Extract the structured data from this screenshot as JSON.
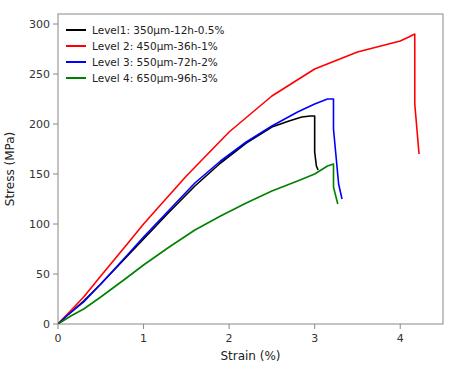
{
  "chart_data": {
    "type": "line",
    "xlabel": "Strain (%)",
    "ylabel": "Stress (MPa)",
    "xlim": [
      0,
      4.5
    ],
    "ylim": [
      0,
      310
    ],
    "xticks": [
      0,
      1,
      2,
      3,
      4
    ],
    "yticks": [
      0,
      50,
      100,
      150,
      200,
      250,
      300
    ],
    "legend": "upper left",
    "series": [
      {
        "name": "Level1: 350μm-12h-0.5%",
        "color": "black",
        "x": [
          0,
          0.1,
          0.3,
          0.5,
          0.8,
          1.0,
          1.3,
          1.6,
          1.9,
          2.2,
          2.5,
          2.7,
          2.85,
          2.95,
          3.0,
          3.0,
          3.02,
          3.04
        ],
        "values": [
          0,
          8,
          23,
          40,
          67,
          85,
          112,
          138,
          161,
          181,
          197,
          203,
          207,
          208,
          208,
          172,
          158,
          154
        ]
      },
      {
        "name": "Level 2: 450μm-36h-1%",
        "color": "red",
        "x": [
          0,
          0.1,
          0.3,
          0.5,
          0.8,
          1.0,
          1.5,
          2.0,
          2.5,
          3.0,
          3.5,
          4.0,
          4.1,
          4.17,
          4.17,
          4.22
        ],
        "values": [
          0,
          9,
          27,
          48,
          79,
          100,
          148,
          192,
          228,
          255,
          272,
          283,
          287,
          290,
          220,
          170
        ]
      },
      {
        "name": "Level 3: 550μm-72h-2%",
        "color": "blue",
        "x": [
          0,
          0.1,
          0.3,
          0.5,
          0.8,
          1.0,
          1.3,
          1.6,
          1.9,
          2.2,
          2.5,
          2.8,
          3.0,
          3.15,
          3.22,
          3.22,
          3.28,
          3.32
        ],
        "values": [
          0,
          8,
          22,
          40,
          68,
          87,
          114,
          141,
          163,
          182,
          198,
          212,
          220,
          225,
          225,
          195,
          140,
          125
        ]
      },
      {
        "name": "Level 4: 650μm-96h-3%",
        "color": "green",
        "x": [
          0,
          0.15,
          0.3,
          0.5,
          0.8,
          1.0,
          1.3,
          1.6,
          1.9,
          2.2,
          2.5,
          2.8,
          3.0,
          3.15,
          3.22,
          3.22,
          3.27
        ],
        "values": [
          0,
          8,
          15,
          27,
          46,
          59,
          77,
          94,
          108,
          121,
          133,
          143,
          150,
          158,
          160,
          137,
          120
        ]
      }
    ]
  }
}
